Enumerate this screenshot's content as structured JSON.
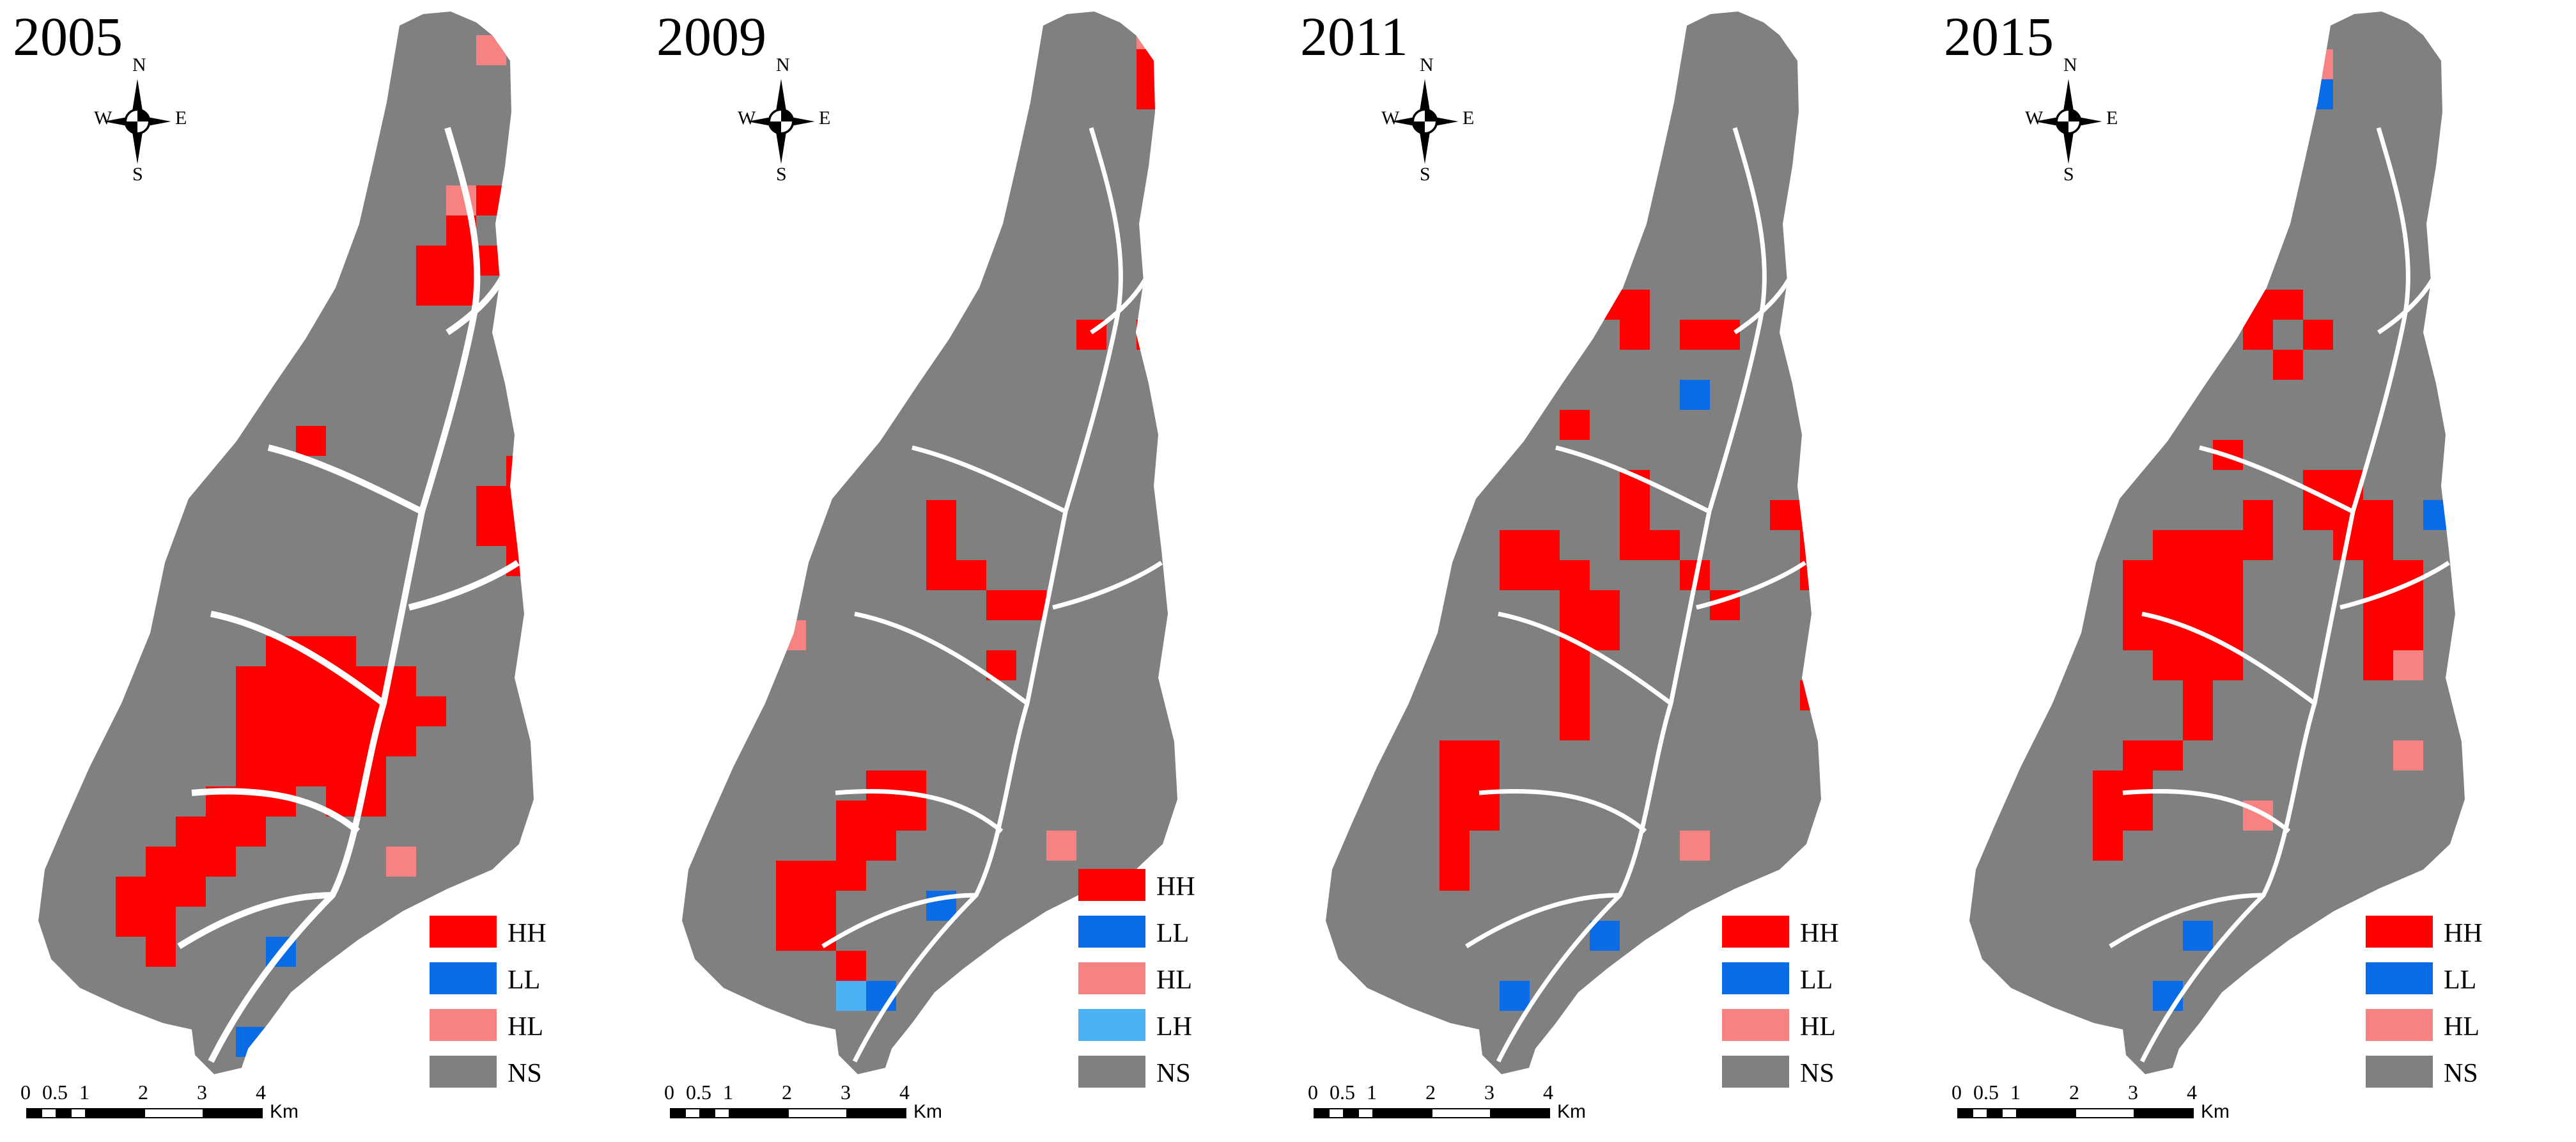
{
  "colors": {
    "HH": "#ff0000",
    "LL": "#0a6be6",
    "HL": "#f78282",
    "LH": "#4bb2f5",
    "NS": "#808080"
  },
  "compass": {
    "north": "N",
    "south": "S",
    "east": "E",
    "west": "W"
  },
  "scale": {
    "ticks": [
      "0",
      "0.5",
      "1",
      "2",
      "3",
      "4"
    ],
    "unit": "Km"
  },
  "panels": [
    {
      "year": "2005",
      "legend": [
        {
          "code": "HH",
          "label": "HH"
        },
        {
          "code": "LL",
          "label": "LL"
        },
        {
          "code": "HL",
          "label": "HL"
        },
        {
          "code": "NS",
          "label": "NS"
        }
      ]
    },
    {
      "year": "2009",
      "legend": [
        {
          "code": "HH",
          "label": "HH"
        },
        {
          "code": "LL",
          "label": "LL"
        },
        {
          "code": "HL",
          "label": "HL"
        },
        {
          "code": "LH",
          "label": "LH"
        },
        {
          "code": "NS",
          "label": "NS"
        }
      ]
    },
    {
      "year": "2011",
      "legend": [
        {
          "code": "HH",
          "label": "HH"
        },
        {
          "code": "LL",
          "label": "LL"
        },
        {
          "code": "HL",
          "label": "HL"
        },
        {
          "code": "NS",
          "label": "NS"
        }
      ]
    },
    {
      "year": "2015",
      "legend": [
        {
          "code": "HH",
          "label": "HH"
        },
        {
          "code": "LL",
          "label": "LL"
        },
        {
          "code": "HL",
          "label": "HL"
        },
        {
          "code": "NS",
          "label": "NS"
        }
      ]
    }
  ]
}
